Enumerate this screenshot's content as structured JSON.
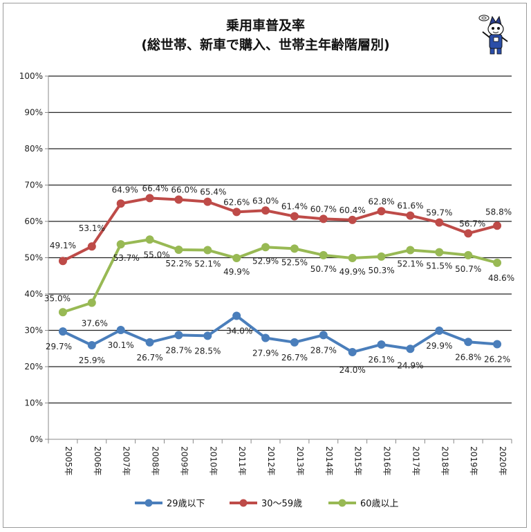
{
  "chart_data": {
    "type": "line",
    "title": "乗用車普及率",
    "subtitle": "(総世帯、新車で購入、世帯主年齢階層別)",
    "categories": [
      "2005年",
      "2006年",
      "2007年",
      "2008年",
      "2009年",
      "2010年",
      "2011年",
      "2012年",
      "2013年",
      "2014年",
      "2015年",
      "2016年",
      "2017年",
      "2018年",
      "2019年",
      "2020年"
    ],
    "ylim": [
      0,
      100
    ],
    "yticks": [
      0,
      10,
      20,
      30,
      40,
      50,
      60,
      70,
      80,
      90,
      100
    ],
    "ytick_suffix": "%",
    "grid": true,
    "legend_position": "bottom",
    "series": [
      {
        "name": "29歳以下",
        "color": "#4a7ebb",
        "values": [
          29.7,
          25.9,
          30.1,
          26.7,
          28.7,
          28.5,
          34.0,
          27.9,
          26.7,
          28.7,
          24.0,
          26.1,
          24.9,
          29.9,
          26.8,
          26.2
        ],
        "labels": [
          "29.7%",
          "25.9%",
          "30.1%",
          "26.7%",
          "28.7%",
          "28.5%",
          "34.0%",
          "27.9%",
          "26.7%",
          "28.7%",
          "24.0%",
          "26.1%",
          "24.9%",
          "29.9%",
          "26.8%",
          "26.2%"
        ]
      },
      {
        "name": "30～59歳",
        "color": "#be4b48",
        "values": [
          49.1,
          53.1,
          64.9,
          66.4,
          66.0,
          65.4,
          62.6,
          63.0,
          61.4,
          60.7,
          60.4,
          62.8,
          61.6,
          59.7,
          56.7,
          58.8
        ],
        "labels": [
          "49.1%",
          "53.1%",
          "64.9%",
          "66.4%",
          "66.0%",
          "65.4%",
          "62.6%",
          "63.0%",
          "61.4%",
          "60.7%",
          "60.4%",
          "62.8%",
          "61.6%",
          "59.7%",
          "56.7%",
          "58.8%"
        ]
      },
      {
        "name": "60歳以上",
        "color": "#98b954",
        "values": [
          35.0,
          37.6,
          53.7,
          55.0,
          52.2,
          52.1,
          49.9,
          52.9,
          52.5,
          50.7,
          49.9,
          50.3,
          52.1,
          51.5,
          50.7,
          48.6
        ],
        "labels": [
          "35.0%",
          "37.6%",
          "53.7%",
          "55.0%",
          "52.2%",
          "52.1%",
          "49.9%",
          "52.9%",
          "52.5%",
          "50.7%",
          "49.9%",
          "50.3%",
          "52.1%",
          "51.5%",
          "50.7%",
          "48.6%"
        ]
      }
    ]
  },
  "mascot": {
    "icon": "mascot-character-icon"
  }
}
